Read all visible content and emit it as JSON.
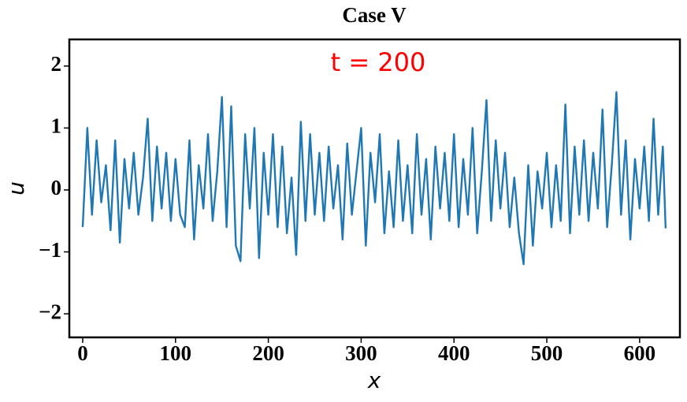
{
  "chart_data": {
    "type": "line",
    "title": "Case V",
    "xlabel": "x",
    "ylabel": "u",
    "annotation": "t = 200",
    "annotation_color": "#ff0000",
    "xlim": [
      -14.4,
      643.4
    ],
    "ylim": [
      -2.38,
      2.43
    ],
    "xticks": [
      0,
      100,
      200,
      300,
      400,
      500,
      600
    ],
    "yticks": [
      {
        "value": -2,
        "label": "−2"
      },
      {
        "value": -1,
        "label": "−1"
      },
      0,
      1,
      2
    ],
    "grid": false,
    "x": [
      0,
      5,
      10,
      15,
      20,
      25,
      30,
      35,
      40,
      45,
      50,
      55,
      60,
      65,
      70,
      75,
      80,
      85,
      90,
      95,
      100,
      105,
      110,
      115,
      120,
      125,
      130,
      135,
      140,
      145,
      150,
      155,
      160,
      165,
      170,
      175,
      180,
      185,
      190,
      195,
      200,
      205,
      210,
      215,
      220,
      225,
      230,
      235,
      240,
      245,
      250,
      255,
      260,
      265,
      270,
      275,
      280,
      285,
      290,
      295,
      300,
      305,
      310,
      315,
      320,
      325,
      330,
      335,
      340,
      345,
      350,
      355,
      360,
      365,
      370,
      375,
      380,
      385,
      390,
      395,
      400,
      405,
      410,
      415,
      420,
      425,
      430,
      435,
      440,
      445,
      450,
      455,
      460,
      465,
      470,
      475,
      480,
      485,
      490,
      495,
      500,
      505,
      510,
      515,
      520,
      525,
      530,
      535,
      540,
      545,
      550,
      555,
      560,
      565,
      570,
      575,
      580,
      585,
      590,
      595,
      600,
      605,
      610,
      615,
      620,
      625,
      628
    ],
    "series": [
      {
        "color": "#1f77b4",
        "values": [
          -0.6,
          1.0,
          -0.4,
          0.8,
          -0.2,
          0.4,
          -0.65,
          0.8,
          -0.85,
          0.5,
          -0.3,
          0.6,
          -0.4,
          0.2,
          1.15,
          -0.5,
          0.7,
          -0.3,
          0.6,
          -0.5,
          0.5,
          -0.4,
          -0.6,
          0.8,
          -0.8,
          0.4,
          -0.3,
          0.9,
          -0.5,
          0.3,
          1.5,
          -0.6,
          1.35,
          -0.9,
          -1.15,
          0.9,
          -0.3,
          1.0,
          -1.1,
          0.6,
          -0.4,
          0.9,
          -0.6,
          0.7,
          -0.7,
          0.2,
          -1.05,
          1.1,
          -0.5,
          0.9,
          -0.4,
          0.6,
          -0.5,
          0.7,
          -0.3,
          0.4,
          -0.8,
          0.75,
          -0.4,
          0.3,
          1.0,
          -0.9,
          0.6,
          -0.2,
          0.9,
          -0.7,
          0.3,
          -0.6,
          0.8,
          -0.5,
          0.4,
          -0.7,
          0.9,
          -0.4,
          0.5,
          -0.8,
          0.7,
          -0.3,
          0.6,
          -0.5,
          0.9,
          -0.6,
          0.5,
          -0.4,
          1.0,
          -0.7,
          0.3,
          1.45,
          -0.5,
          0.8,
          -0.3,
          0.6,
          -0.6,
          0.2,
          -0.7,
          -1.2,
          0.4,
          -0.9,
          0.3,
          -0.3,
          0.6,
          -0.6,
          0.4,
          -0.5,
          1.38,
          -0.7,
          0.7,
          -0.4,
          0.8,
          -0.5,
          0.6,
          -0.3,
          1.3,
          -0.6,
          0.4,
          1.58,
          -0.4,
          0.8,
          -0.8,
          0.5,
          -0.3,
          0.7,
          -0.5,
          1.15,
          -0.4,
          0.7,
          -0.62
        ]
      }
    ]
  }
}
